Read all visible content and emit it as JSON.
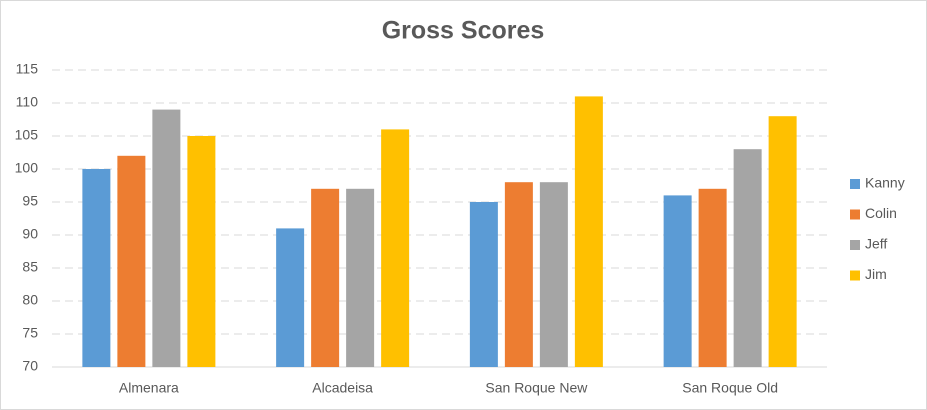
{
  "chart_data": {
    "type": "bar",
    "title": "Gross Scores",
    "categories": [
      "Almenara",
      "Alcadeisa",
      "San Roque New",
      "San Roque Old"
    ],
    "series": [
      {
        "name": "Kanny",
        "color": "#5b9bd5",
        "values": [
          100,
          91,
          95,
          96
        ]
      },
      {
        "name": "Colin",
        "color": "#ed7d31",
        "values": [
          102,
          97,
          98,
          97
        ]
      },
      {
        "name": "Jeff",
        "color": "#a5a5a5",
        "values": [
          109,
          97,
          98,
          103
        ]
      },
      {
        "name": "Jim",
        "color": "#ffc000",
        "values": [
          105,
          106,
          111,
          108
        ]
      }
    ],
    "ylim": [
      70,
      115
    ],
    "yticks": [
      70,
      75,
      80,
      85,
      90,
      95,
      100,
      105,
      110,
      115
    ],
    "grid": true,
    "legend": "right"
  }
}
